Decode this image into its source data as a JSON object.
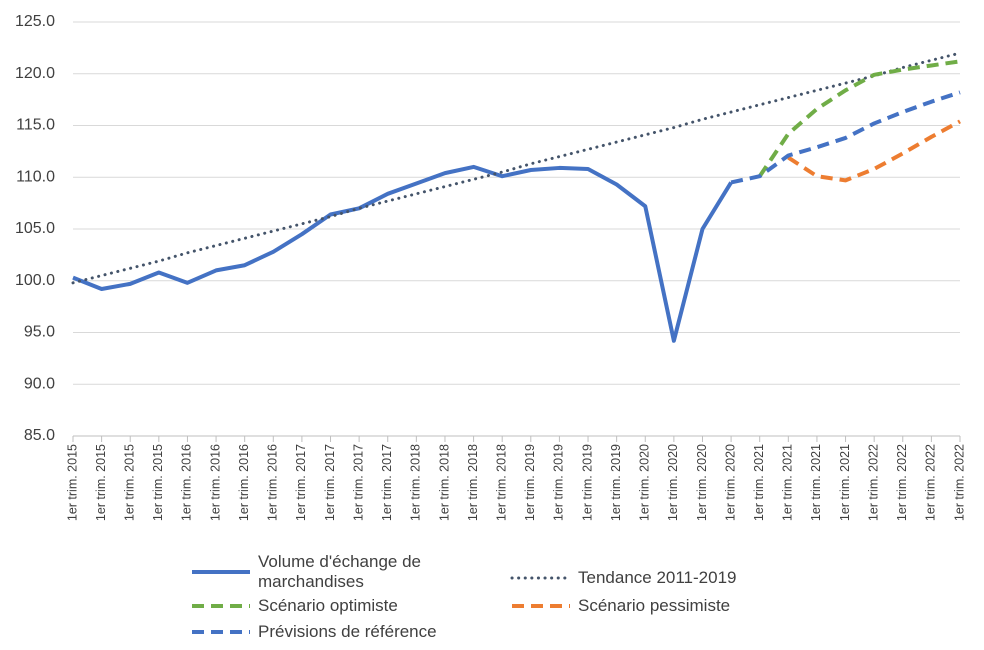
{
  "chart_data": {
    "type": "line",
    "categories": [
      "1er trim. 2015",
      "1er trim. 2015",
      "1er trim. 2015",
      "1er trim. 2015",
      "1er trim. 2016",
      "1er trim. 2016",
      "1er trim. 2016",
      "1er trim. 2016",
      "1er trim. 2017",
      "1er trim. 2017",
      "1er trim. 2017",
      "1er trim. 2017",
      "1er trim. 2018",
      "1er trim. 2018",
      "1er trim. 2018",
      "1er trim. 2018",
      "1er trim. 2019",
      "1er trim. 2019",
      "1er trim. 2019",
      "1er trim. 2019",
      "1er trim. 2020",
      "1er trim. 2020",
      "1er trim. 2020",
      "1er trim. 2020",
      "1er trim. 2021",
      "1er trim. 2021",
      "1er trim. 2021",
      "1er trim. 2021",
      "1er trim. 2022",
      "1er trim. 2022",
      "1er trim. 2022",
      "1er trim. 2022"
    ],
    "series": [
      {
        "name": "Volume d'échange de marchandises",
        "color": "#4472c4",
        "style": "solid",
        "values": [
          100.3,
          99.2,
          99.7,
          100.8,
          99.8,
          101.0,
          101.5,
          102.8,
          104.5,
          106.4,
          107.0,
          108.4,
          109.4,
          110.4,
          111.0,
          110.1,
          110.7,
          110.9,
          110.8,
          109.3,
          107.2,
          94.2,
          105.0,
          109.5,
          null,
          null,
          null,
          null,
          null,
          null,
          null,
          null
        ]
      },
      {
        "name": "Tendance 2011-2019",
        "color": "#44546a",
        "style": "dotted",
        "values": [
          99.8,
          100.5,
          101.2,
          101.9,
          102.7,
          103.4,
          104.1,
          104.8,
          105.5,
          106.2,
          107.0,
          107.7,
          108.4,
          109.1,
          109.8,
          110.5,
          111.3,
          112.0,
          112.7,
          113.4,
          114.1,
          114.8,
          115.6,
          116.3,
          117.0,
          117.7,
          118.4,
          119.1,
          119.8,
          120.6,
          121.3,
          122.0
        ]
      },
      {
        "name": "Scénario optimiste",
        "color": "#70ad47",
        "style": "dashed",
        "values": [
          null,
          null,
          null,
          null,
          null,
          null,
          null,
          null,
          null,
          null,
          null,
          null,
          null,
          null,
          null,
          null,
          null,
          null,
          null,
          null,
          null,
          null,
          null,
          null,
          110.1,
          114.2,
          116.6,
          118.4,
          119.9,
          120.4,
          120.8,
          121.2
        ]
      },
      {
        "name": "Scénario pessimiste",
        "color": "#ed7d31",
        "style": "dashed",
        "values": [
          null,
          null,
          null,
          null,
          null,
          null,
          null,
          null,
          null,
          null,
          null,
          null,
          null,
          null,
          null,
          null,
          null,
          null,
          null,
          null,
          null,
          null,
          null,
          null,
          null,
          111.9,
          110.1,
          109.7,
          110.8,
          112.3,
          113.9,
          115.4
        ]
      },
      {
        "name": "Prévisions de référence",
        "color": "#4472c4",
        "style": "dashed",
        "values": [
          null,
          null,
          null,
          null,
          null,
          null,
          null,
          null,
          null,
          null,
          null,
          null,
          null,
          null,
          null,
          null,
          null,
          null,
          null,
          null,
          null,
          null,
          null,
          109.5,
          110.1,
          112.1,
          112.9,
          113.8,
          115.2,
          116.3,
          117.3,
          118.2
        ]
      }
    ],
    "ylim": [
      85,
      125
    ],
    "yticks": [
      {
        "value": 85,
        "label": "85.0"
      },
      {
        "value": 90,
        "label": "90.0"
      },
      {
        "value": 95,
        "label": "95.0"
      },
      {
        "value": 100,
        "label": "100.0"
      },
      {
        "value": 105,
        "label": "105.0"
      },
      {
        "value": 110,
        "label": "110.0"
      },
      {
        "value": 115,
        "label": "115.0"
      },
      {
        "value": 120,
        "label": "120.0"
      },
      {
        "value": 125,
        "label": "125.0"
      }
    ],
    "grid": true
  }
}
